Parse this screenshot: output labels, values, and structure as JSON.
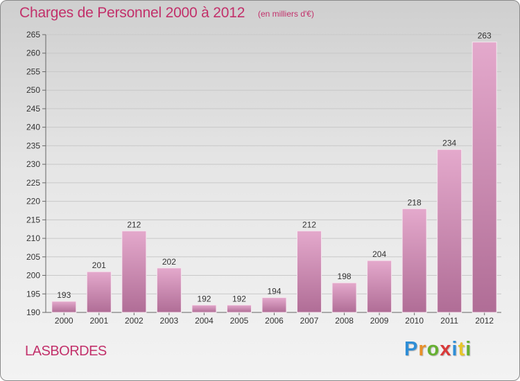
{
  "title": "Charges de Personnel 2000 à 2012",
  "subtitle": "(en milliers d'€)",
  "commune": "LASBORDES",
  "logo": {
    "letters": [
      {
        "ch": "P",
        "color": "#2f8ed6"
      },
      {
        "ch": "r",
        "color": "#e8902a"
      },
      {
        "ch": "o",
        "color": "#66b032"
      },
      {
        "ch": "x",
        "color": "#d93a3a"
      },
      {
        "ch": "i",
        "color": "#2f8ed6"
      },
      {
        "ch": "t",
        "color": "#e8c52a"
      },
      {
        "ch": "i",
        "color": "#66b032"
      }
    ]
  },
  "colors": {
    "bar_top": "#e4a9cc",
    "bar_bottom": "#b06d96",
    "text_accent": "#c2306a"
  },
  "chart_data": {
    "type": "bar",
    "categories": [
      "2000",
      "2001",
      "2002",
      "2003",
      "2004",
      "2005",
      "2006",
      "2007",
      "2008",
      "2009",
      "2010",
      "2011",
      "2012"
    ],
    "values": [
      193,
      201,
      212,
      202,
      192,
      192,
      194,
      212,
      198,
      204,
      218,
      234,
      263
    ],
    "ylim": [
      190,
      265
    ],
    "yticks": [
      190,
      195,
      200,
      205,
      210,
      215,
      220,
      225,
      230,
      235,
      240,
      245,
      250,
      255,
      260,
      265
    ],
    "grid": true
  }
}
